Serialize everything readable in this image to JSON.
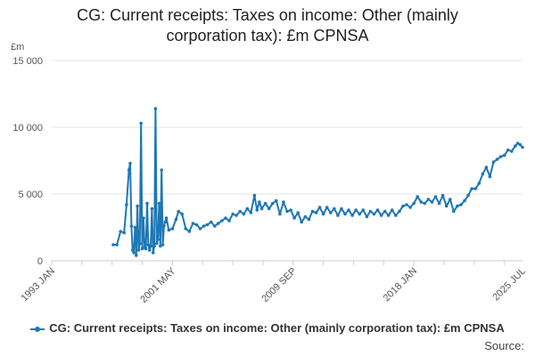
{
  "title_line1": "CG: Current receipts: Taxes on income: Other (mainly",
  "title_line2": "corporation tax): £m CPNSA",
  "source": "Source:",
  "chart_data": {
    "type": "line",
    "title": "CG: Current receipts: Taxes on income: Other (mainly corporation tax): £m CPNSA",
    "ylabel": "£m",
    "ylim": [
      0,
      15000
    ],
    "yticks": [
      0,
      5000,
      10000,
      15000
    ],
    "ytick_labels": [
      "0",
      "5 000",
      "10 000",
      "15 000"
    ],
    "xlim": [
      "1993-01",
      "2025-07"
    ],
    "xticks": [
      "1993-01",
      "2001-05",
      "2009-09",
      "2018-01",
      "2025-07"
    ],
    "xtick_labels": [
      "1993 JAN",
      "2001 MAY",
      "2009 SEP",
      "2018 JAN",
      "2025 JUL"
    ],
    "grid": true,
    "legend_position": "bottom",
    "color": "#1f77b4",
    "series": [
      {
        "name": "CG: Current receipts: Taxes on income: Other (mainly corporation tax): £m CPNSA",
        "points": [
          [
            "1997-04",
            1200
          ],
          [
            "1997-07",
            1200
          ],
          [
            "1997-10",
            2200
          ],
          [
            "1998-01",
            2100
          ],
          [
            "1998-03",
            4200
          ],
          [
            "1998-05",
            6800
          ],
          [
            "1998-06",
            7300
          ],
          [
            "1998-07",
            2600
          ],
          [
            "1998-08",
            800
          ],
          [
            "1998-09",
            600
          ],
          [
            "1998-10",
            2500
          ],
          [
            "1998-11",
            400
          ],
          [
            "1998-12",
            4100
          ],
          [
            "1999-01",
            800
          ],
          [
            "1999-02",
            1300
          ],
          [
            "1999-03",
            10300
          ],
          [
            "1999-04",
            900
          ],
          [
            "1999-05",
            3200
          ],
          [
            "1999-06",
            1000
          ],
          [
            "1999-07",
            900
          ],
          [
            "1999-08",
            4300
          ],
          [
            "1999-09",
            1200
          ],
          [
            "1999-10",
            800
          ],
          [
            "1999-11",
            1100
          ],
          [
            "1999-12",
            3900
          ],
          [
            "2000-01",
            600
          ],
          [
            "2000-02",
            1100
          ],
          [
            "2000-03",
            11400
          ],
          [
            "2000-04",
            1300
          ],
          [
            "2000-05",
            1600
          ],
          [
            "2000-06",
            4300
          ],
          [
            "2000-07",
            1100
          ],
          [
            "2000-08",
            6800
          ],
          [
            "2000-09",
            1200
          ],
          [
            "2000-10",
            2600
          ],
          [
            "2000-11",
            2900
          ],
          [
            "2000-12",
            3200
          ],
          [
            "2001-02",
            2300
          ],
          [
            "2001-05",
            2400
          ],
          [
            "2001-08",
            3100
          ],
          [
            "2001-10",
            3700
          ],
          [
            "2002-01",
            3500
          ],
          [
            "2002-04",
            2400
          ],
          [
            "2002-07",
            2200
          ],
          [
            "2002-10",
            2800
          ],
          [
            "2003-01",
            2700
          ],
          [
            "2003-04",
            2400
          ],
          [
            "2003-07",
            2600
          ],
          [
            "2003-10",
            2700
          ],
          [
            "2004-01",
            2900
          ],
          [
            "2004-04",
            2600
          ],
          [
            "2004-07",
            2800
          ],
          [
            "2004-10",
            3000
          ],
          [
            "2005-01",
            3200
          ],
          [
            "2005-04",
            3000
          ],
          [
            "2005-07",
            3500
          ],
          [
            "2005-10",
            3400
          ],
          [
            "2006-01",
            3700
          ],
          [
            "2006-04",
            3500
          ],
          [
            "2006-07",
            3900
          ],
          [
            "2006-10",
            3600
          ],
          [
            "2007-01",
            4900
          ],
          [
            "2007-03",
            3800
          ],
          [
            "2007-05",
            4400
          ],
          [
            "2007-07",
            3900
          ],
          [
            "2007-10",
            4300
          ],
          [
            "2008-01",
            3900
          ],
          [
            "2008-04",
            4300
          ],
          [
            "2008-07",
            4500
          ],
          [
            "2008-10",
            3500
          ],
          [
            "2009-01",
            4400
          ],
          [
            "2009-04",
            3700
          ],
          [
            "2009-07",
            3800
          ],
          [
            "2009-10",
            3200
          ],
          [
            "2010-01",
            3600
          ],
          [
            "2010-04",
            2900
          ],
          [
            "2010-07",
            3300
          ],
          [
            "2010-10",
            3100
          ],
          [
            "2011-01",
            3700
          ],
          [
            "2011-04",
            3600
          ],
          [
            "2011-07",
            4000
          ],
          [
            "2011-10",
            3500
          ],
          [
            "2012-01",
            4000
          ],
          [
            "2012-04",
            3600
          ],
          [
            "2012-07",
            3900
          ],
          [
            "2012-10",
            3400
          ],
          [
            "2013-01",
            3900
          ],
          [
            "2013-04",
            3500
          ],
          [
            "2013-07",
            3800
          ],
          [
            "2013-10",
            3400
          ],
          [
            "2014-01",
            3800
          ],
          [
            "2014-04",
            3500
          ],
          [
            "2014-07",
            3800
          ],
          [
            "2014-10",
            3300
          ],
          [
            "2015-01",
            3700
          ],
          [
            "2015-04",
            3500
          ],
          [
            "2015-07",
            3800
          ],
          [
            "2015-10",
            3400
          ],
          [
            "2016-01",
            3700
          ],
          [
            "2016-04",
            3400
          ],
          [
            "2016-07",
            3800
          ],
          [
            "2016-10",
            3400
          ],
          [
            "2017-01",
            3700
          ],
          [
            "2017-04",
            4100
          ],
          [
            "2017-07",
            4200
          ],
          [
            "2017-10",
            4000
          ],
          [
            "2018-01",
            4300
          ],
          [
            "2018-04",
            4800
          ],
          [
            "2018-07",
            4400
          ],
          [
            "2018-10",
            4300
          ],
          [
            "2019-01",
            4600
          ],
          [
            "2019-04",
            4400
          ],
          [
            "2019-07",
            4800
          ],
          [
            "2019-10",
            4300
          ],
          [
            "2020-01",
            4900
          ],
          [
            "2020-04",
            4100
          ],
          [
            "2020-07",
            4600
          ],
          [
            "2020-10",
            3700
          ],
          [
            "2021-01",
            4100
          ],
          [
            "2021-04",
            4200
          ],
          [
            "2021-07",
            4500
          ],
          [
            "2021-10",
            4900
          ],
          [
            "2022-01",
            5400
          ],
          [
            "2022-04",
            5400
          ],
          [
            "2022-07",
            5800
          ],
          [
            "2022-10",
            6500
          ],
          [
            "2023-01",
            7000
          ],
          [
            "2023-04",
            6300
          ],
          [
            "2023-07",
            7400
          ],
          [
            "2023-10",
            7600
          ],
          [
            "2024-01",
            7800
          ],
          [
            "2024-04",
            7900
          ],
          [
            "2024-07",
            8300
          ],
          [
            "2024-10",
            8200
          ],
          [
            "2025-01",
            8600
          ],
          [
            "2025-03",
            8800
          ],
          [
            "2025-05",
            8700
          ],
          [
            "2025-07",
            8500
          ]
        ]
      }
    ]
  }
}
